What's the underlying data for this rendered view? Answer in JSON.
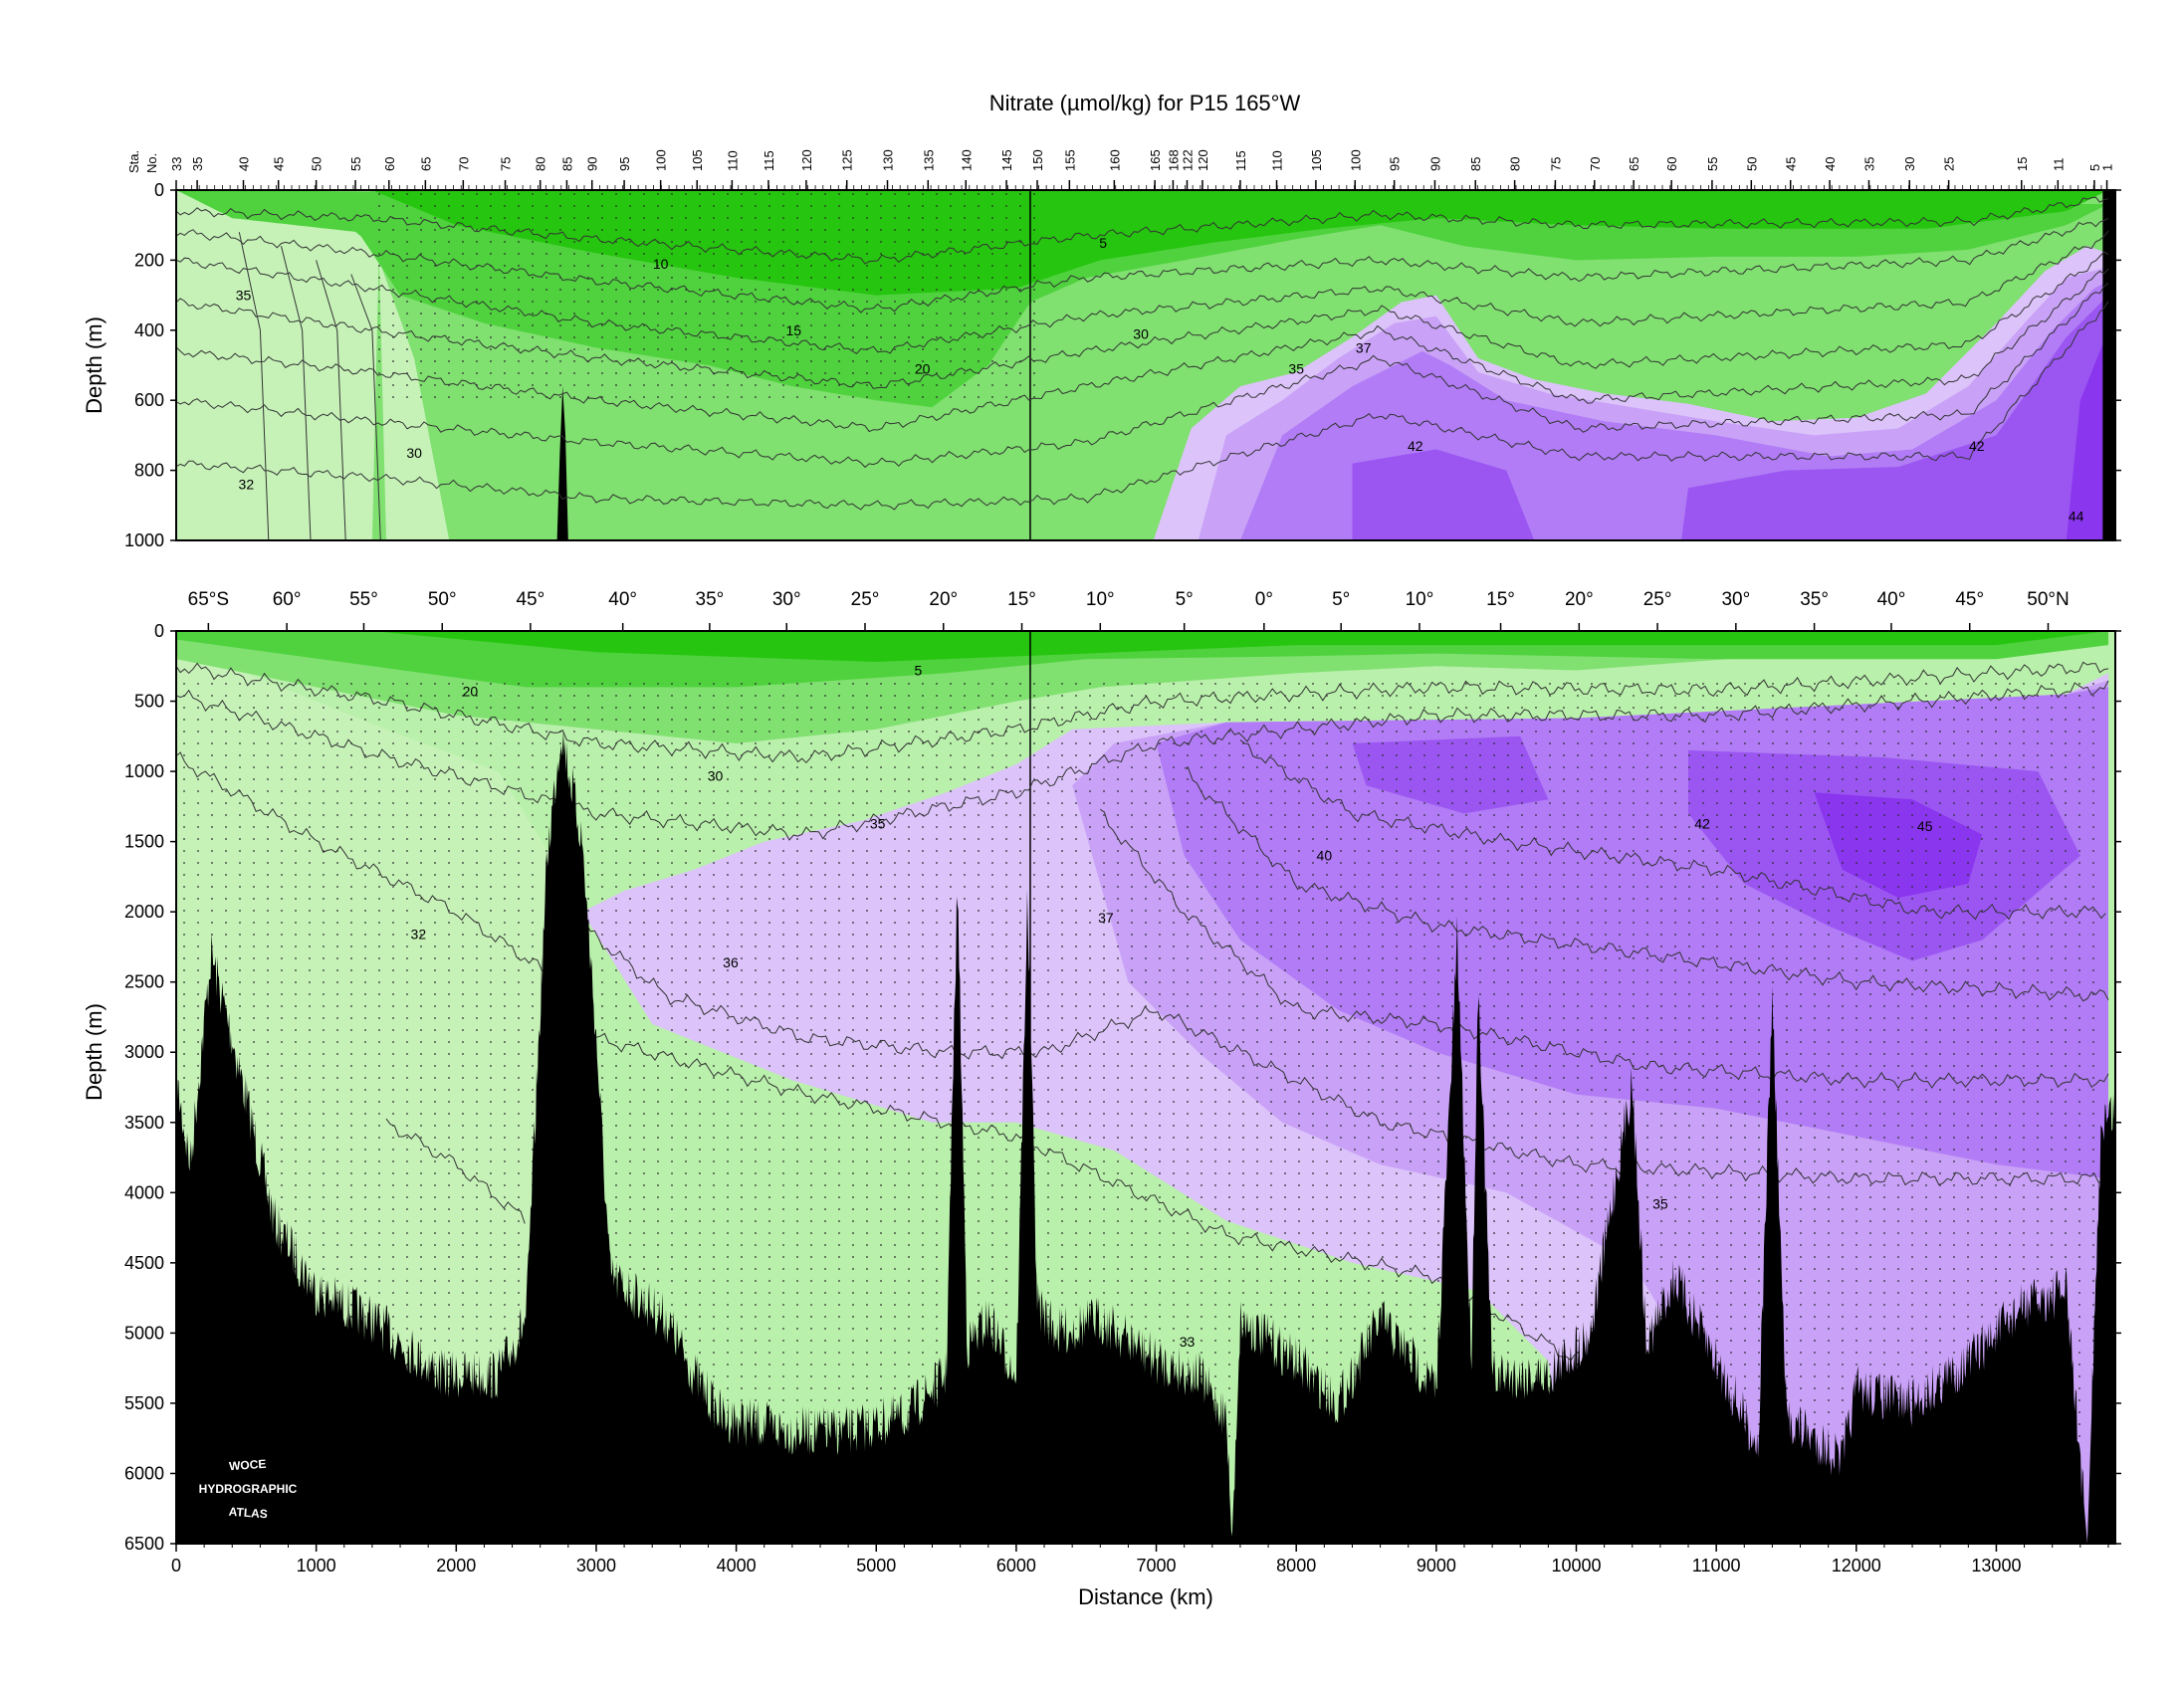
{
  "chart_data": {
    "type": "contour-section",
    "title": "Nitrate (µmol/kg) for P15 165°W",
    "xlabel": "Distance (km)",
    "ylabel": "Depth (m)",
    "xlim": [
      0,
      13850
    ],
    "station_header": [
      "Sta.",
      "No."
    ],
    "station_labels": [
      {
        "label": "33",
        "km": 0
      },
      {
        "label": "35",
        "km": 150
      },
      {
        "label": "40",
        "km": 480
      },
      {
        "label": "45",
        "km": 730
      },
      {
        "label": "50",
        "km": 1000
      },
      {
        "label": "55",
        "km": 1280
      },
      {
        "label": "60",
        "km": 1520
      },
      {
        "label": "65",
        "km": 1780
      },
      {
        "label": "70",
        "km": 2050
      },
      {
        "label": "75",
        "km": 2350
      },
      {
        "label": "80",
        "km": 2600
      },
      {
        "label": "85",
        "km": 2790
      },
      {
        "label": "90",
        "km": 2970
      },
      {
        "label": "95",
        "km": 3200
      },
      {
        "label": "100",
        "km": 3460
      },
      {
        "label": "105",
        "km": 3720
      },
      {
        "label": "110",
        "km": 3970
      },
      {
        "label": "115",
        "km": 4230
      },
      {
        "label": "120",
        "km": 4500
      },
      {
        "label": "125",
        "km": 4790
      },
      {
        "label": "130",
        "km": 5080
      },
      {
        "label": "135",
        "km": 5370
      },
      {
        "label": "140",
        "km": 5640
      },
      {
        "label": "145",
        "km": 5930
      },
      {
        "label": "150",
        "km": 6150
      },
      {
        "label": "155",
        "km": 6380
      },
      {
        "label": "160",
        "km": 6700
      },
      {
        "label": "165",
        "km": 6990
      },
      {
        "label": "168",
        "km": 7120
      },
      {
        "label": "122",
        "km": 7220
      },
      {
        "label": "120",
        "km": 7330
      },
      {
        "label": "115",
        "km": 7600
      },
      {
        "label": "110",
        "km": 7860
      },
      {
        "label": "105",
        "km": 8140
      },
      {
        "label": "100",
        "km": 8420
      },
      {
        "label": "95",
        "km": 8700
      },
      {
        "label": "90",
        "km": 8990
      },
      {
        "label": "85",
        "km": 9280
      },
      {
        "label": "80",
        "km": 9560
      },
      {
        "label": "75",
        "km": 9850
      },
      {
        "label": "70",
        "km": 10130
      },
      {
        "label": "65",
        "km": 10410
      },
      {
        "label": "60",
        "km": 10680
      },
      {
        "label": "55",
        "km": 10970
      },
      {
        "label": "50",
        "km": 11250
      },
      {
        "label": "45",
        "km": 11530
      },
      {
        "label": "40",
        "km": 11810
      },
      {
        "label": "35",
        "km": 12090
      },
      {
        "label": "30",
        "km": 12380
      },
      {
        "label": "25",
        "km": 12660
      },
      {
        "label": "15",
        "km": 13180
      },
      {
        "label": "11",
        "km": 13440
      },
      {
        "label": "5",
        "km": 13700
      },
      {
        "label": "1",
        "km": 13790
      }
    ],
    "latitude_labels": [
      {
        "label": "65°S",
        "km": 230
      },
      {
        "label": "60°",
        "km": 790
      },
      {
        "label": "55°",
        "km": 1340
      },
      {
        "label": "50°",
        "km": 1900
      },
      {
        "label": "45°",
        "km": 2530
      },
      {
        "label": "40°",
        "km": 3190
      },
      {
        "label": "35°",
        "km": 3810
      },
      {
        "label": "30°",
        "km": 4360
      },
      {
        "label": "25°",
        "km": 4920
      },
      {
        "label": "20°",
        "km": 5480
      },
      {
        "label": "15°",
        "km": 6040
      },
      {
        "label": "10°",
        "km": 6600
      },
      {
        "label": "5°",
        "km": 7200
      },
      {
        "label": "0°",
        "km": 7770
      },
      {
        "label": "5°",
        "km": 8320
      },
      {
        "label": "10°",
        "km": 8880
      },
      {
        "label": "15°",
        "km": 9460
      },
      {
        "label": "20°",
        "km": 10020
      },
      {
        "label": "25°",
        "km": 10580
      },
      {
        "label": "30°",
        "km": 11140
      },
      {
        "label": "35°",
        "km": 11700
      },
      {
        "label": "40°",
        "km": 12250
      },
      {
        "label": "45°",
        "km": 12810
      },
      {
        "label": "50°N",
        "km": 13370
      }
    ],
    "x_ticks": [
      0,
      1000,
      2000,
      3000,
      4000,
      5000,
      6000,
      7000,
      8000,
      9000,
      10000,
      11000,
      12000,
      13000
    ],
    "upper_panel": {
      "ylim": [
        0,
        1000
      ],
      "y_ticks": [
        0,
        200,
        400,
        600,
        800,
        1000
      ],
      "contour_labels": [
        {
          "text": "35",
          "km": 480,
          "depth": 300
        },
        {
          "text": "10",
          "km": 3460,
          "depth": 210
        },
        {
          "text": "15",
          "km": 4410,
          "depth": 400
        },
        {
          "text": "20",
          "km": 5330,
          "depth": 510
        },
        {
          "text": "5",
          "km": 6620,
          "depth": 150
        },
        {
          "text": "30",
          "km": 6890,
          "depth": 410
        },
        {
          "text": "37",
          "km": 8480,
          "depth": 450
        },
        {
          "text": "35",
          "km": 8000,
          "depth": 510
        },
        {
          "text": "42",
          "km": 8850,
          "depth": 730
        },
        {
          "text": "42",
          "km": 12860,
          "depth": 730
        },
        {
          "text": "30",
          "km": 1700,
          "depth": 750
        },
        {
          "text": "32",
          "km": 500,
          "depth": 840
        },
        {
          "text": "44",
          "km": 13570,
          "depth": 930
        }
      ]
    },
    "lower_panel": {
      "ylim": [
        0,
        6500
      ],
      "y_ticks": [
        0,
        500,
        1000,
        1500,
        2000,
        2500,
        3000,
        3500,
        4000,
        4500,
        5000,
        5500,
        6000,
        6500
      ],
      "contour_labels": [
        {
          "text": "5",
          "km": 5300,
          "depth": 280
        },
        {
          "text": "20",
          "km": 2100,
          "depth": 430
        },
        {
          "text": "30",
          "km": 3850,
          "depth": 1030
        },
        {
          "text": "35",
          "km": 5010,
          "depth": 1370
        },
        {
          "text": "32",
          "km": 1730,
          "depth": 2160
        },
        {
          "text": "36",
          "km": 3960,
          "depth": 2360
        },
        {
          "text": "37",
          "km": 6640,
          "depth": 2040
        },
        {
          "text": "40",
          "km": 8200,
          "depth": 1600
        },
        {
          "text": "42",
          "km": 10900,
          "depth": 1370
        },
        {
          "text": "45",
          "km": 12490,
          "depth": 1390
        },
        {
          "text": "35",
          "km": 10600,
          "depth": 4080
        },
        {
          "text": "33",
          "km": 7220,
          "depth": 5060
        }
      ]
    },
    "colors": {
      "lt32": "#c6f2b8",
      "c32_35": "#b9f0ab",
      "c20_32": "#80e070",
      "c10_20": "#4fd23e",
      "lt10": "#26c50f",
      "c35_37": "#dcc3fa",
      "c37_40": "#c9a2f7",
      "c40_42": "#b17cf5",
      "c42_44": "#9b56f2",
      "gt44": "#8a35ee",
      "bathymetry": "#000000"
    }
  },
  "atlas_mark": [
    "WOCE",
    "HYDROGRAPHIC",
    "ATLAS"
  ]
}
